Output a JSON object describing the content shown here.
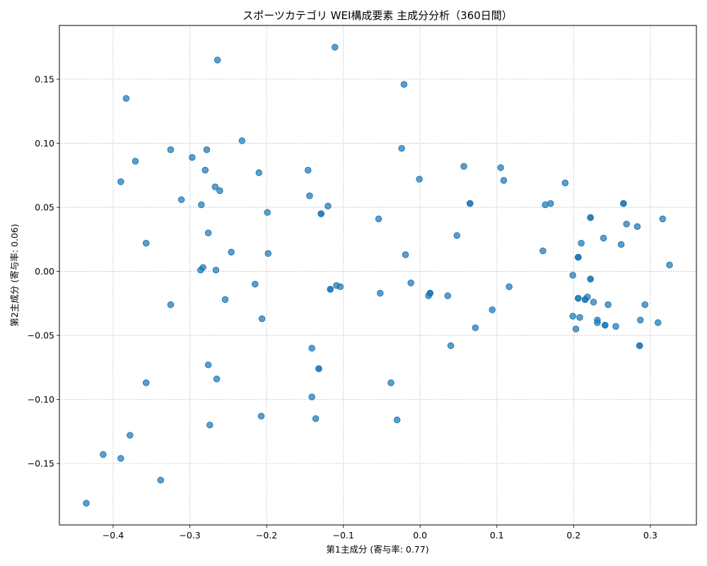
{
  "chart_data": {
    "type": "scatter",
    "title": "スポーツカテゴリ WEI構成要素 主成分分析（360日間）",
    "xlabel": "第1主成分 (寄与率: 0.77)",
    "ylabel": "第2主成分 (寄与率: 0.06)",
    "xlim": [
      -0.47,
      0.36
    ],
    "ylim": [
      -0.198,
      0.192
    ],
    "xticks": [
      -0.4,
      -0.3,
      -0.2,
      -0.1,
      0.0,
      0.1,
      0.2,
      0.3
    ],
    "xtick_labels": [
      "−0.4",
      "−0.3",
      "−0.2",
      "−0.1",
      "0.0",
      "0.1",
      "0.2",
      "0.3"
    ],
    "yticks": [
      -0.15,
      -0.1,
      -0.05,
      0.0,
      0.05,
      0.1,
      0.15
    ],
    "ytick_labels": [
      "−0.15",
      "−0.10",
      "−0.05",
      "0.00",
      "0.05",
      "0.10",
      "0.15"
    ],
    "grid": true,
    "color": "#1f77b4",
    "points": [
      {
        "x": -0.111,
        "y": 0.175
      },
      {
        "x": -0.264,
        "y": 0.165
      },
      {
        "x": -0.021,
        "y": 0.146
      },
      {
        "x": -0.383,
        "y": 0.135
      },
      {
        "x": -0.232,
        "y": 0.102
      },
      {
        "x": -0.325,
        "y": 0.095
      },
      {
        "x": -0.278,
        "y": 0.095
      },
      {
        "x": -0.024,
        "y": 0.096
      },
      {
        "x": -0.297,
        "y": 0.089
      },
      {
        "x": -0.371,
        "y": 0.086
      },
      {
        "x": 0.057,
        "y": 0.082
      },
      {
        "x": 0.105,
        "y": 0.081
      },
      {
        "x": -0.28,
        "y": 0.079
      },
      {
        "x": -0.146,
        "y": 0.079
      },
      {
        "x": -0.21,
        "y": 0.077
      },
      {
        "x": -0.001,
        "y": 0.072
      },
      {
        "x": 0.109,
        "y": 0.071
      },
      {
        "x": -0.39,
        "y": 0.07
      },
      {
        "x": 0.189,
        "y": 0.069
      },
      {
        "x": -0.267,
        "y": 0.066
      },
      {
        "x": -0.261,
        "y": 0.063
      },
      {
        "x": -0.144,
        "y": 0.059
      },
      {
        "x": -0.311,
        "y": 0.056
      },
      {
        "x": 0.065,
        "y": 0.053
      },
      {
        "x": 0.065,
        "y": 0.053
      },
      {
        "x": 0.17,
        "y": 0.053
      },
      {
        "x": 0.163,
        "y": 0.052
      },
      {
        "x": 0.265,
        "y": 0.053
      },
      {
        "x": 0.265,
        "y": 0.053
      },
      {
        "x": -0.285,
        "y": 0.052
      },
      {
        "x": -0.12,
        "y": 0.051
      },
      {
        "x": -0.199,
        "y": 0.046
      },
      {
        "x": -0.129,
        "y": 0.045
      },
      {
        "x": -0.129,
        "y": 0.045
      },
      {
        "x": 0.222,
        "y": 0.042
      },
      {
        "x": 0.222,
        "y": 0.042
      },
      {
        "x": 0.316,
        "y": 0.041
      },
      {
        "x": -0.054,
        "y": 0.041
      },
      {
        "x": 0.269,
        "y": 0.037
      },
      {
        "x": 0.283,
        "y": 0.035
      },
      {
        "x": -0.276,
        "y": 0.03
      },
      {
        "x": 0.048,
        "y": 0.028
      },
      {
        "x": 0.239,
        "y": 0.026
      },
      {
        "x": -0.357,
        "y": 0.022
      },
      {
        "x": 0.21,
        "y": 0.022
      },
      {
        "x": 0.262,
        "y": 0.021
      },
      {
        "x": 0.16,
        "y": 0.016
      },
      {
        "x": -0.246,
        "y": 0.015
      },
      {
        "x": -0.198,
        "y": 0.014
      },
      {
        "x": -0.019,
        "y": 0.013
      },
      {
        "x": 0.206,
        "y": 0.011
      },
      {
        "x": 0.206,
        "y": 0.011
      },
      {
        "x": 0.206,
        "y": 0.011
      },
      {
        "x": 0.325,
        "y": 0.005
      },
      {
        "x": -0.283,
        "y": 0.003
      },
      {
        "x": -0.286,
        "y": 0.001
      },
      {
        "x": -0.266,
        "y": 0.001
      },
      {
        "x": 0.199,
        "y": -0.003
      },
      {
        "x": 0.222,
        "y": -0.006
      },
      {
        "x": 0.222,
        "y": -0.006
      },
      {
        "x": -0.215,
        "y": -0.01
      },
      {
        "x": -0.012,
        "y": -0.009
      },
      {
        "x": -0.109,
        "y": -0.011
      },
      {
        "x": -0.104,
        "y": -0.012
      },
      {
        "x": 0.116,
        "y": -0.012
      },
      {
        "x": -0.117,
        "y": -0.014
      },
      {
        "x": -0.117,
        "y": -0.014
      },
      {
        "x": 0.013,
        "y": -0.017
      },
      {
        "x": 0.013,
        "y": -0.017
      },
      {
        "x": -0.052,
        "y": -0.017
      },
      {
        "x": 0.036,
        "y": -0.019
      },
      {
        "x": 0.011,
        "y": -0.019
      },
      {
        "x": 0.218,
        "y": -0.02
      },
      {
        "x": 0.206,
        "y": -0.021
      },
      {
        "x": 0.206,
        "y": -0.021
      },
      {
        "x": -0.254,
        "y": -0.022
      },
      {
        "x": 0.215,
        "y": -0.022
      },
      {
        "x": 0.215,
        "y": -0.022
      },
      {
        "x": 0.226,
        "y": -0.024
      },
      {
        "x": -0.325,
        "y": -0.026
      },
      {
        "x": 0.245,
        "y": -0.026
      },
      {
        "x": 0.293,
        "y": -0.026
      },
      {
        "x": 0.094,
        "y": -0.03
      },
      {
        "x": 0.199,
        "y": -0.035
      },
      {
        "x": 0.208,
        "y": -0.036
      },
      {
        "x": -0.206,
        "y": -0.037
      },
      {
        "x": 0.287,
        "y": -0.038
      },
      {
        "x": 0.231,
        "y": -0.038
      },
      {
        "x": 0.231,
        "y": -0.04
      },
      {
        "x": 0.31,
        "y": -0.04
      },
      {
        "x": 0.241,
        "y": -0.042
      },
      {
        "x": 0.241,
        "y": -0.042
      },
      {
        "x": 0.255,
        "y": -0.043
      },
      {
        "x": 0.072,
        "y": -0.044
      },
      {
        "x": 0.203,
        "y": -0.045
      },
      {
        "x": 0.04,
        "y": -0.058
      },
      {
        "x": 0.286,
        "y": -0.058
      },
      {
        "x": 0.286,
        "y": -0.058
      },
      {
        "x": -0.141,
        "y": -0.06
      },
      {
        "x": -0.276,
        "y": -0.073
      },
      {
        "x": -0.132,
        "y": -0.076
      },
      {
        "x": -0.132,
        "y": -0.076
      },
      {
        "x": -0.265,
        "y": -0.084
      },
      {
        "x": -0.357,
        "y": -0.087
      },
      {
        "x": -0.038,
        "y": -0.087
      },
      {
        "x": -0.141,
        "y": -0.098
      },
      {
        "x": -0.207,
        "y": -0.113
      },
      {
        "x": -0.136,
        "y": -0.115
      },
      {
        "x": -0.03,
        "y": -0.116
      },
      {
        "x": -0.274,
        "y": -0.12
      },
      {
        "x": -0.378,
        "y": -0.128
      },
      {
        "x": -0.413,
        "y": -0.143
      },
      {
        "x": -0.39,
        "y": -0.146
      },
      {
        "x": -0.338,
        "y": -0.163
      },
      {
        "x": -0.435,
        "y": -0.181
      }
    ]
  }
}
